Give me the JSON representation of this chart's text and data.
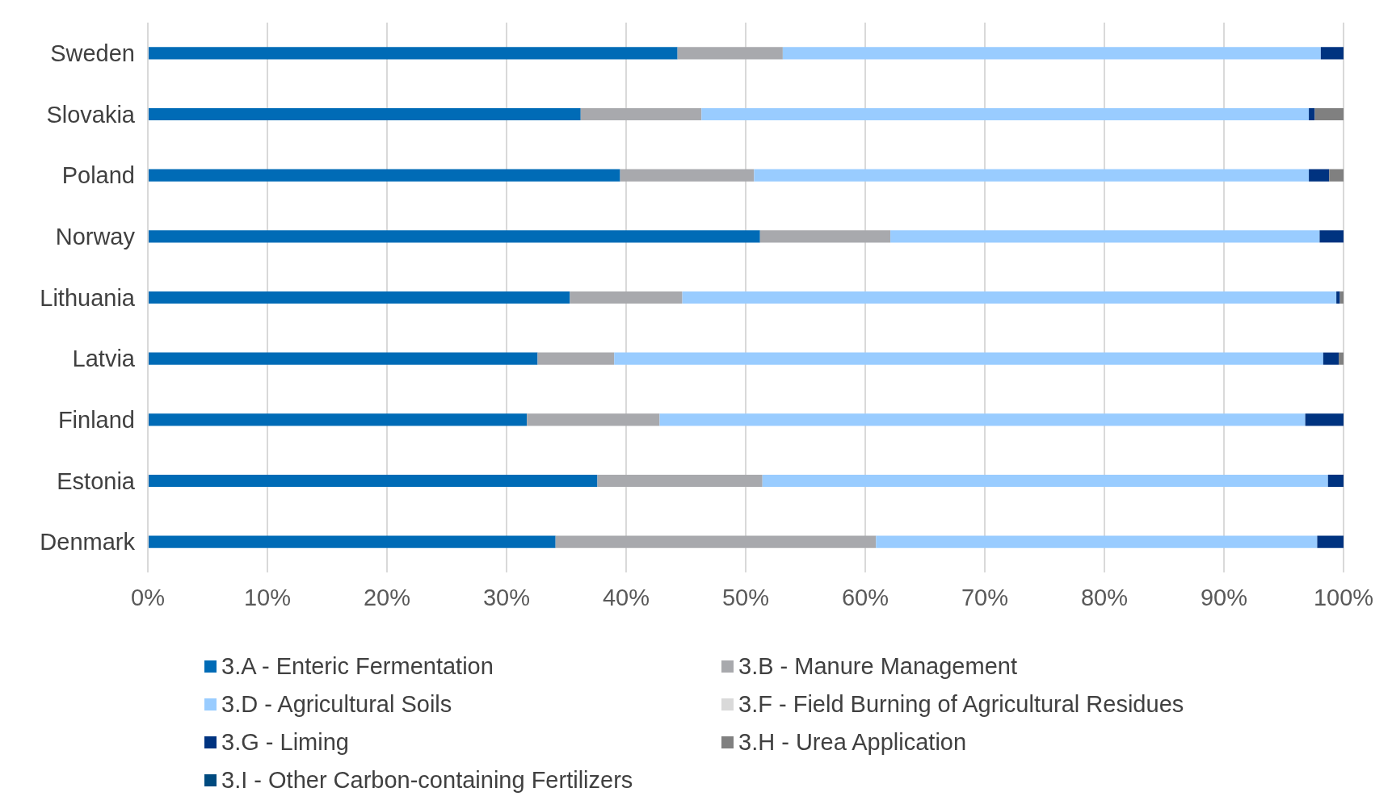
{
  "chart_data": {
    "type": "bar",
    "orientation": "horizontal",
    "stacked": true,
    "categories": [
      "Sweden",
      "Slovakia",
      "Poland",
      "Norway",
      "Lithuania",
      "Latvia",
      "Finland",
      "Estonia",
      "Denmark"
    ],
    "series": [
      {
        "name": "3.A - Enteric Fermentation",
        "color": "#006bb6",
        "values": [
          44.3,
          36.2,
          39.5,
          51.2,
          35.3,
          32.6,
          31.7,
          37.6,
          34.1
        ]
      },
      {
        "name": "3.B - Manure Management",
        "color": "#a8a9ad",
        "values": [
          8.8,
          10.1,
          11.2,
          10.9,
          9.4,
          6.4,
          11.1,
          13.8,
          26.8
        ]
      },
      {
        "name": "3.D - Agricultural Soils",
        "color": "#99ccff",
        "values": [
          45.0,
          50.8,
          46.4,
          35.9,
          54.7,
          59.3,
          54.0,
          47.3,
          36.9
        ]
      },
      {
        "name": "3.F - Field Burning of Agricultural Residues",
        "color": "#d9d9d9",
        "values": [
          0,
          0,
          0,
          0,
          0,
          0,
          0,
          0,
          0
        ]
      },
      {
        "name": "3.G - Liming",
        "color": "#003380",
        "values": [
          1.9,
          0.5,
          1.7,
          2.0,
          0.3,
          1.3,
          3.2,
          1.3,
          2.2
        ]
      },
      {
        "name": "3.H - Urea Application",
        "color": "#808080",
        "values": [
          0,
          2.4,
          1.2,
          0,
          0.3,
          0.4,
          0,
          0,
          0
        ]
      },
      {
        "name": "3.I - Other Carbon-containing Fertilizers",
        "color": "#004a7f",
        "values": [
          0,
          0,
          0,
          0,
          0,
          0,
          0,
          0,
          0
        ]
      }
    ],
    "xlim": [
      0,
      100
    ],
    "xticks": [
      {
        "value": 0,
        "label": "0%"
      },
      {
        "value": 10,
        "label": "10%"
      },
      {
        "value": 20,
        "label": "20%"
      },
      {
        "value": 30,
        "label": "30%"
      },
      {
        "value": 40,
        "label": "40%"
      },
      {
        "value": 50,
        "label": "50%"
      },
      {
        "value": 60,
        "label": "60%"
      },
      {
        "value": 70,
        "label": "70%"
      },
      {
        "value": 80,
        "label": "80%"
      },
      {
        "value": 90,
        "label": "90%"
      },
      {
        "value": 100,
        "label": "100%"
      }
    ],
    "grid": "x",
    "legend": "bottom"
  }
}
